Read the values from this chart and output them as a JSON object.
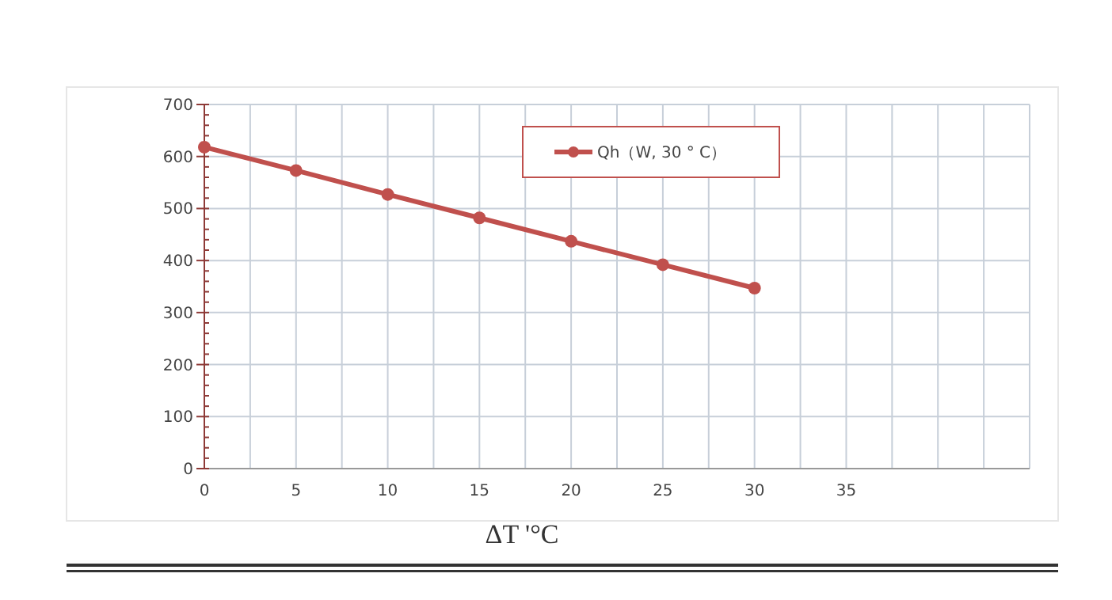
{
  "chart_data": {
    "type": "line",
    "xlabel": "ΔT '°C",
    "x": [
      0,
      5,
      10,
      15,
      20,
      25,
      30
    ],
    "series": [
      {
        "name": "Qh（W, 30 ° C）",
        "color": "#c0504d",
        "values": [
          618,
          573,
          527,
          482,
          437,
          392,
          347
        ]
      }
    ],
    "xlim": [
      0,
      45
    ],
    "xticks": [
      0,
      {
        "value": 2.5,
        "label": null
      },
      5,
      {
        "value": 7.5,
        "label": null
      },
      10,
      {
        "value": 12.5,
        "label": null
      },
      15,
      {
        "value": 17.5,
        "label": null
      },
      20,
      {
        "value": 22.5,
        "label": null
      },
      25,
      {
        "value": 27.5,
        "label": null
      },
      30,
      {
        "value": 32.5,
        "label": null
      },
      35,
      {
        "value": 37.5,
        "label": null
      },
      {
        "value": 40,
        "label": null
      },
      {
        "value": 42.5,
        "label": null
      },
      {
        "value": 45,
        "label": null
      }
    ],
    "ylim": [
      0,
      700
    ],
    "yticks": [
      0,
      100,
      200,
      300,
      400,
      500,
      600,
      700
    ],
    "grid": true,
    "legend": "top",
    "marker": "circle",
    "line_style": "solid"
  }
}
